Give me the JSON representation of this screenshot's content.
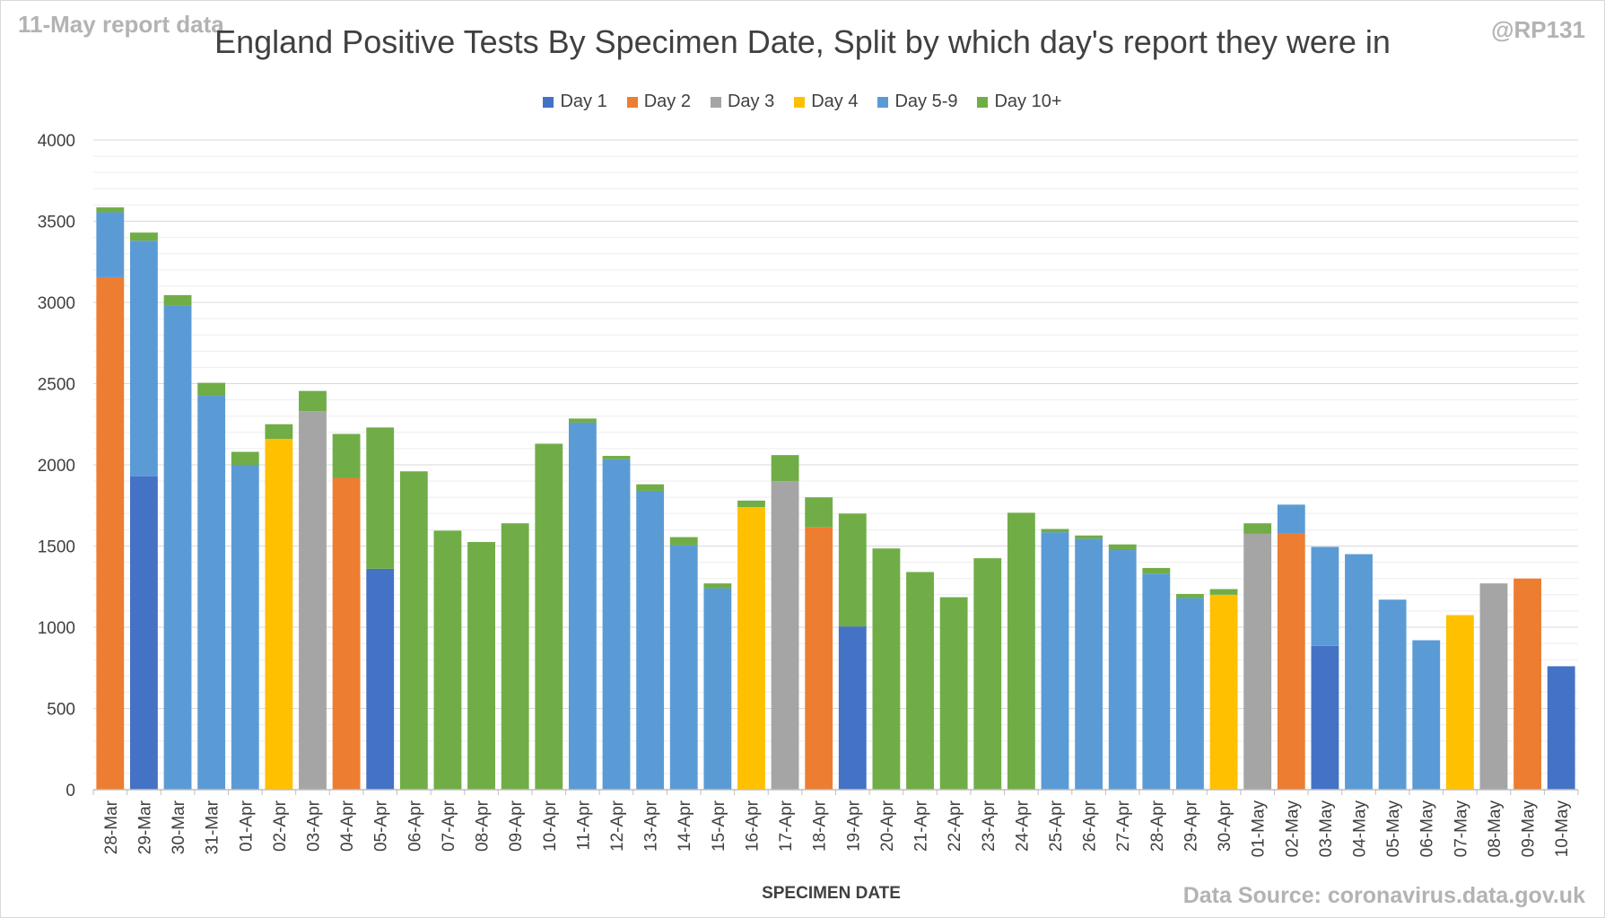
{
  "header": {
    "report_label": "11-May report data",
    "handle": "@RP131",
    "source": "Data Source: coronavirus.data.gov.uk"
  },
  "chart_data": {
    "type": "bar",
    "stacked": true,
    "title": "England Positive Tests By Specimen Date, Split by which day's report they were in",
    "xlabel": "SPECIMEN DATE",
    "ylabel": "",
    "ylim": [
      0,
      4000
    ],
    "yticks": [
      0,
      500,
      1000,
      1500,
      2000,
      2500,
      3000,
      3500,
      4000
    ],
    "grid": true,
    "legend_position": "top",
    "categories": [
      "28-Mar",
      "29-Mar",
      "30-Mar",
      "31-Mar",
      "01-Apr",
      "02-Apr",
      "03-Apr",
      "04-Apr",
      "05-Apr",
      "06-Apr",
      "07-Apr",
      "08-Apr",
      "09-Apr",
      "10-Apr",
      "11-Apr",
      "12-Apr",
      "13-Apr",
      "14-Apr",
      "15-Apr",
      "16-Apr",
      "17-Apr",
      "18-Apr",
      "19-Apr",
      "20-Apr",
      "21-Apr",
      "22-Apr",
      "23-Apr",
      "24-Apr",
      "25-Apr",
      "26-Apr",
      "27-Apr",
      "28-Apr",
      "29-Apr",
      "30-Apr",
      "01-May",
      "02-May",
      "03-May",
      "04-May",
      "05-May",
      "06-May",
      "07-May",
      "08-May",
      "09-May",
      "10-May"
    ],
    "series": [
      {
        "name": "Day 1",
        "color": "#4472c4",
        "values": [
          0,
          1930,
          0,
          0,
          0,
          0,
          0,
          0,
          1360,
          0,
          0,
          0,
          0,
          0,
          0,
          0,
          0,
          0,
          0,
          0,
          0,
          0,
          1005,
          0,
          0,
          0,
          0,
          0,
          0,
          0,
          0,
          0,
          0,
          0,
          0,
          0,
          885,
          0,
          0,
          0,
          0,
          0,
          0,
          760
        ]
      },
      {
        "name": "Day 2",
        "color": "#ed7d31",
        "values": [
          3155,
          0,
          0,
          0,
          0,
          0,
          0,
          1920,
          0,
          0,
          0,
          0,
          0,
          0,
          0,
          0,
          0,
          0,
          0,
          0,
          0,
          1615,
          0,
          0,
          0,
          0,
          0,
          0,
          0,
          0,
          0,
          0,
          0,
          0,
          0,
          1580,
          0,
          0,
          0,
          0,
          0,
          0,
          1300,
          0
        ]
      },
      {
        "name": "Day 3",
        "color": "#a5a5a5",
        "values": [
          0,
          0,
          0,
          0,
          0,
          0,
          2330,
          0,
          0,
          0,
          0,
          0,
          0,
          0,
          0,
          0,
          0,
          0,
          0,
          0,
          1900,
          0,
          0,
          0,
          0,
          0,
          0,
          0,
          0,
          0,
          0,
          0,
          0,
          0,
          1575,
          0,
          0,
          0,
          0,
          0,
          0,
          1270,
          0,
          0
        ]
      },
      {
        "name": "Day 4",
        "color": "#ffc000",
        "values": [
          0,
          0,
          0,
          0,
          0,
          2160,
          0,
          0,
          0,
          0,
          0,
          0,
          0,
          0,
          0,
          0,
          0,
          0,
          0,
          1740,
          0,
          0,
          0,
          0,
          0,
          0,
          0,
          0,
          0,
          0,
          0,
          0,
          0,
          1200,
          0,
          0,
          0,
          0,
          0,
          0,
          1075,
          0,
          0,
          0
        ]
      },
      {
        "name": "Day 5-9",
        "color": "#5b9bd5",
        "values": [
          400,
          1450,
          2980,
          2425,
          2000,
          0,
          0,
          0,
          0,
          0,
          0,
          0,
          0,
          0,
          2260,
          2035,
          1840,
          1505,
          1240,
          0,
          0,
          0,
          0,
          0,
          0,
          0,
          0,
          0,
          1585,
          1545,
          1475,
          1330,
          1180,
          0,
          0,
          175,
          610,
          1450,
          1170,
          920,
          0,
          0,
          0,
          0
        ]
      },
      {
        "name": "Day 10+",
        "color": "#70ad47",
        "values": [
          30,
          50,
          65,
          80,
          80,
          90,
          125,
          270,
          870,
          1960,
          1595,
          1525,
          1640,
          2130,
          25,
          20,
          40,
          50,
          30,
          40,
          160,
          185,
          695,
          1485,
          1340,
          1185,
          1425,
          1705,
          20,
          20,
          35,
          35,
          25,
          35,
          65,
          0,
          0,
          0,
          0,
          0,
          0,
          0,
          0,
          0
        ]
      }
    ]
  }
}
